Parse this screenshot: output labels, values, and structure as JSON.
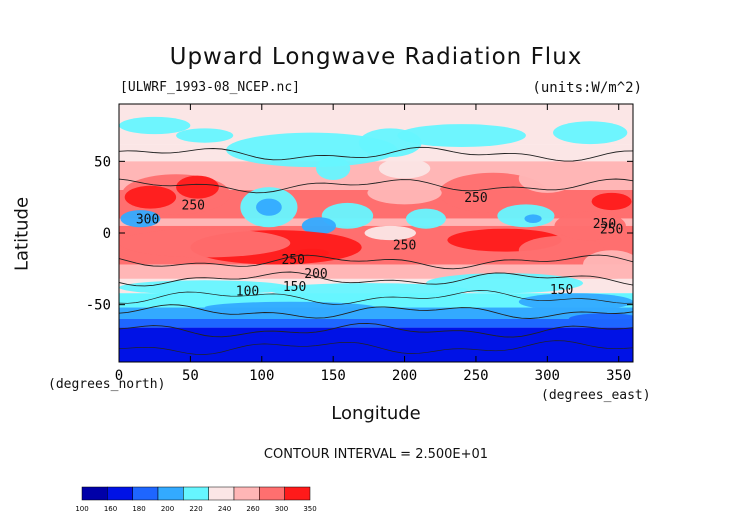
{
  "chart_data": {
    "type": "heatmap",
    "title": "Upward Longwave Radiation Flux",
    "subtitle_left": "[ULWRF_1993-08_NCEP.nc]",
    "subtitle_right": "(units:W/m^2)",
    "xlabel": "Longitude",
    "ylabel": "Latitude",
    "x_unit_label": "(degrees_east)",
    "y_unit_label": "(degrees_north)",
    "xlim": [
      0,
      360
    ],
    "ylim": [
      -90,
      90
    ],
    "x_ticks": [
      0,
      50,
      100,
      150,
      200,
      250,
      300,
      350
    ],
    "y_ticks": [
      -50,
      0,
      50
    ],
    "contour_interval_text": "CONTOUR INTERVAL = 2.500E+01",
    "contour_labels": [
      {
        "text": "250",
        "x": 52,
        "y": 20
      },
      {
        "text": "300",
        "x": 20,
        "y": 10
      },
      {
        "text": "250",
        "x": 250,
        "y": 25
      },
      {
        "text": "250",
        "x": 340,
        "y": 7
      },
      {
        "text": "250",
        "x": 345,
        "y": 3
      },
      {
        "text": "250",
        "x": 200,
        "y": -8
      },
      {
        "text": "250",
        "x": 122,
        "y": -18
      },
      {
        "text": "200",
        "x": 138,
        "y": -28
      },
      {
        "text": "150",
        "x": 123,
        "y": -37
      },
      {
        "text": "100",
        "x": 90,
        "y": -40
      },
      {
        "text": "150",
        "x": 310,
        "y": -39
      }
    ],
    "colorbar": {
      "levels": [
        "100",
        "160",
        "180",
        "200",
        "220",
        "240",
        "260",
        "300",
        "350"
      ],
      "colors": [
        "#0000a8",
        "#0012e6",
        "#1e66ff",
        "#33aaff",
        "#66f6ff",
        "#fbe6e6",
        "#ffb6b6",
        "#ff6f6f",
        "#ff1a1a"
      ]
    },
    "grid": false,
    "legend": "bottom-left colorbar"
  }
}
